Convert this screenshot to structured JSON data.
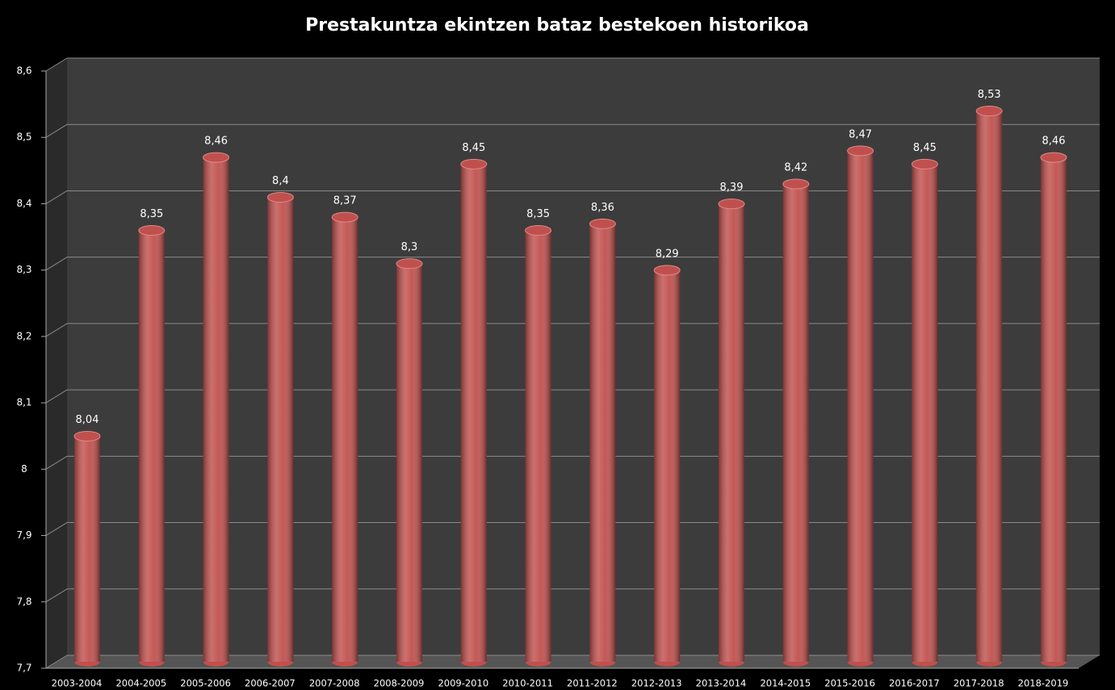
{
  "chart_data": {
    "type": "bar",
    "title": "Prestakuntza  ekintzen bataz bestekoen historikoa",
    "categories": [
      "2003-2004",
      "2004-2005",
      "2005-2006",
      "2006-2007",
      "2007-2008",
      "2008-2009",
      "2009-2010",
      "2010-2011",
      "2011-2012",
      "2012-2013",
      "2013-2014",
      "2014-2015",
      "2015-2016",
      "2016-2017",
      "2017-2018",
      "2018-2019"
    ],
    "values": [
      8.04,
      8.35,
      8.46,
      8.4,
      8.37,
      8.3,
      8.45,
      8.35,
      8.36,
      8.29,
      8.39,
      8.42,
      8.47,
      8.45,
      8.53,
      8.46
    ],
    "value_labels": [
      "8,04",
      "8,35",
      "8,46",
      "8,4",
      "8,37",
      "8,3",
      "8,45",
      "8,35",
      "8,36",
      "8,29",
      "8,39",
      "8,42",
      "8,47",
      "8,45",
      "8,53",
      "8,46"
    ],
    "color": "#c0504d",
    "ylim": [
      7.7,
      8.6
    ],
    "yticks": [
      {
        "value": 7.7,
        "label": "7,7"
      },
      {
        "value": 7.8,
        "label": "7,8"
      },
      {
        "value": 7.9,
        "label": "7,9"
      },
      8,
      {
        "value": 8.1,
        "label": "8,1"
      },
      {
        "value": 8.2,
        "label": "8,2"
      },
      {
        "value": 8.3,
        "label": "8,3"
      },
      {
        "value": 8.4,
        "label": "8,4"
      },
      {
        "value": 8.5,
        "label": "8,5"
      },
      {
        "value": 8.6,
        "label": "8,6"
      }
    ],
    "grid": true
  }
}
